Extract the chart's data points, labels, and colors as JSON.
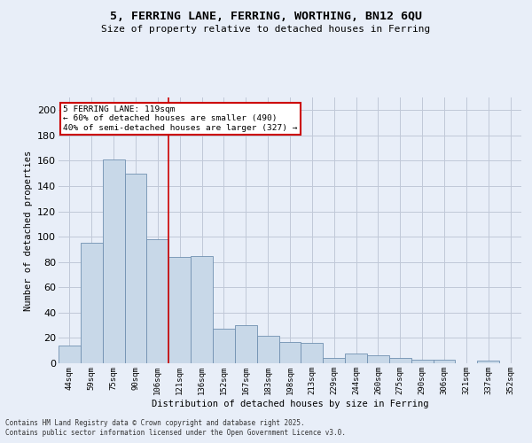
{
  "title_line1": "5, FERRING LANE, FERRING, WORTHING, BN12 6QU",
  "title_line2": "Size of property relative to detached houses in Ferring",
  "xlabel": "Distribution of detached houses by size in Ferring",
  "ylabel": "Number of detached properties",
  "categories": [
    "44sqm",
    "59sqm",
    "75sqm",
    "90sqm",
    "106sqm",
    "121sqm",
    "136sqm",
    "152sqm",
    "167sqm",
    "183sqm",
    "198sqm",
    "213sqm",
    "229sqm",
    "244sqm",
    "260sqm",
    "275sqm",
    "290sqm",
    "306sqm",
    "321sqm",
    "337sqm",
    "352sqm"
  ],
  "values": [
    14,
    95,
    161,
    150,
    98,
    84,
    85,
    27,
    30,
    22,
    17,
    16,
    4,
    8,
    6,
    4,
    3,
    3,
    0,
    2,
    0
  ],
  "bar_color": "#c8d8e8",
  "bar_edge_color": "#7090b0",
  "ylim": [
    0,
    210
  ],
  "yticks": [
    0,
    20,
    40,
    60,
    80,
    100,
    120,
    140,
    160,
    180,
    200
  ],
  "vline_position": 4.5,
  "vline_color": "#cc0000",
  "annotation_line1": "5 FERRING LANE: 119sqm",
  "annotation_line2": "← 60% of detached houses are smaller (490)",
  "annotation_line3": "40% of semi-detached houses are larger (327) →",
  "annotation_box_color": "#ffffff",
  "annotation_box_edge": "#cc0000",
  "grid_color": "#c0c8d8",
  "background_color": "#e8eef8",
  "footer_line1": "Contains HM Land Registry data © Crown copyright and database right 2025.",
  "footer_line2": "Contains public sector information licensed under the Open Government Licence v3.0."
}
